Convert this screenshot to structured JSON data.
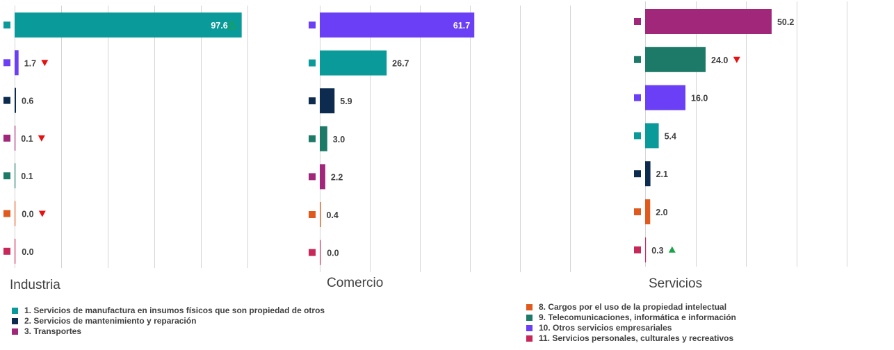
{
  "colors": {
    "teal": "#0a9a9a",
    "navy": "#0d2b4e",
    "magenta": "#a0277a",
    "green": "#1e7a68",
    "orange": "#e05a1e",
    "violet": "#6a3ff5",
    "crimson": "#c8275a",
    "grid": "#d4d4d4",
    "up_triangle": "#1ba34a",
    "down_triangle": "#e81010"
  },
  "chart_data": [
    {
      "type": "bar",
      "orientation": "horizontal",
      "title": "Industria",
      "xlim": [
        0,
        100
      ],
      "grid": true,
      "bars": [
        {
          "value": 97.6,
          "label": "97.6",
          "color": "teal",
          "marker": "up-outline"
        },
        {
          "value": 1.7,
          "label": "1.7",
          "color": "violet",
          "marker": "down"
        },
        {
          "value": 0.6,
          "label": "0.6",
          "color": "navy",
          "marker": ""
        },
        {
          "value": 0.1,
          "label": "0.1",
          "color": "magenta",
          "marker": "down"
        },
        {
          "value": 0.1,
          "label": "0.1",
          "color": "green",
          "marker": ""
        },
        {
          "value": 0.0,
          "label": "0.0",
          "color": "orange",
          "marker": "down"
        },
        {
          "value": 0.0,
          "label": "0.0",
          "color": "crimson",
          "marker": ""
        }
      ]
    },
    {
      "type": "bar",
      "orientation": "horizontal",
      "title": "Comercio",
      "xlim": [
        0,
        100
      ],
      "grid": true,
      "bars": [
        {
          "value": 61.7,
          "label": "61.7",
          "color": "violet",
          "marker": ""
        },
        {
          "value": 26.7,
          "label": "26.7",
          "color": "teal",
          "marker": ""
        },
        {
          "value": 5.9,
          "label": "5.9",
          "color": "navy",
          "marker": ""
        },
        {
          "value": 3.0,
          "label": "3.0",
          "color": "green",
          "marker": ""
        },
        {
          "value": 2.2,
          "label": "2.2",
          "color": "magenta",
          "marker": ""
        },
        {
          "value": 0.4,
          "label": "0.4",
          "color": "orange",
          "marker": ""
        },
        {
          "value": 0.0,
          "label": "0.0",
          "color": "crimson",
          "marker": ""
        }
      ]
    },
    {
      "type": "bar",
      "orientation": "horizontal",
      "title": "Servicios",
      "xlim": [
        0,
        80
      ],
      "grid": true,
      "bars": [
        {
          "value": 50.2,
          "label": "50.2",
          "color": "magenta",
          "marker": ""
        },
        {
          "value": 24.0,
          "label": "24.0",
          "color": "green",
          "marker": "down"
        },
        {
          "value": 16.0,
          "label": "16.0",
          "color": "violet",
          "marker": ""
        },
        {
          "value": 5.4,
          "label": "5.4",
          "color": "teal",
          "marker": ""
        },
        {
          "value": 2.1,
          "label": "2.1",
          "color": "navy",
          "marker": ""
        },
        {
          "value": 2.0,
          "label": "2.0",
          "color": "orange",
          "marker": ""
        },
        {
          "value": 0.3,
          "label": "0.3",
          "color": "crimson",
          "marker": "up"
        }
      ]
    }
  ],
  "legend": {
    "left": [
      {
        "label": "1. Servicios de manufactura en insumos físicos que son propiedad de otros",
        "color": "teal"
      },
      {
        "label": "2. Servicios de mantenimiento y reparación",
        "color": "navy"
      },
      {
        "label": "3. Transportes",
        "color": "magenta"
      }
    ],
    "right": [
      {
        "label": "8. Cargos por el uso de la propiedad intelectual",
        "color": "orange"
      },
      {
        "label": "9. Telecomunicaciones, informática e información",
        "color": "green"
      },
      {
        "label": "10. Otros servicios empresariales",
        "color": "violet"
      },
      {
        "label": "11. Servicios personales, culturales y recreativos",
        "color": "crimson"
      }
    ]
  }
}
